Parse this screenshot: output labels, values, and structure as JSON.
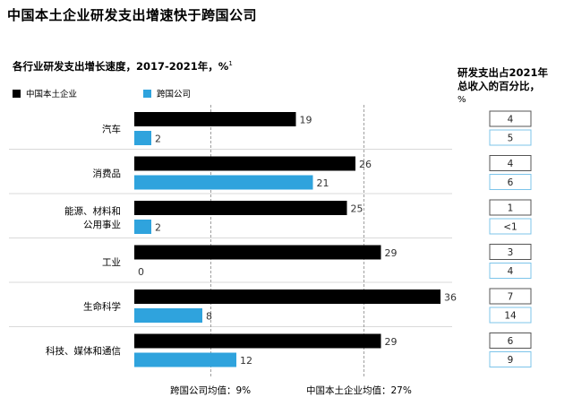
{
  "title": "中国本土企业研发支出增速快于跨国公司",
  "subtitle": "各行业研发支出增长速度，2017-2021年，%",
  "subtitle_note": "1",
  "legend": [
    {
      "label": "中国本土企业",
      "color": "#000000"
    },
    {
      "label": "跨国公司",
      "color": "#2fa3dd"
    }
  ],
  "right_header": {
    "line1": "研发支出占2021年",
    "line2": "总收入的百分比，",
    "line3": "%"
  },
  "averages": {
    "mnc_label": "跨国公司均值：9%",
    "mnc_value": 9,
    "local_label": "中国本土企业均值：27%",
    "local_value": 27
  },
  "chart_data": {
    "type": "bar",
    "orientation": "horizontal",
    "title": "中国本土企业研发支出增速快于跨国公司",
    "subtitle": "各行业研发支出增长速度，2017-2021年，%",
    "categories": [
      [
        "汽车"
      ],
      [
        "消费品"
      ],
      [
        "能源、材料和",
        "公用事业"
      ],
      [
        "工业"
      ],
      [
        "生命科学"
      ],
      [
        "科技、媒体和通信"
      ]
    ],
    "series": [
      {
        "name": "中国本土企业",
        "color": "#000000",
        "values": [
          19,
          26,
          25,
          29,
          36,
          29
        ]
      },
      {
        "name": "跨国公司",
        "color": "#2fa3dd",
        "values": [
          2,
          21,
          2,
          0,
          8,
          12
        ]
      }
    ],
    "value_labels": {
      "中国本土企业": [
        "19",
        "26",
        "25",
        "29",
        "36",
        "29"
      ],
      "跨国公司": [
        "2",
        "21",
        "2",
        "0",
        "8",
        "12"
      ]
    },
    "rd_share_2021": {
      "中国本土企业": [
        "4",
        "4",
        "1",
        "3",
        "7",
        "6"
      ],
      "跨国公司": [
        "5",
        "6",
        "<1",
        "4",
        "14",
        "9"
      ]
    },
    "reference_lines": [
      9,
      27
    ],
    "xlim": [
      0,
      36
    ]
  }
}
